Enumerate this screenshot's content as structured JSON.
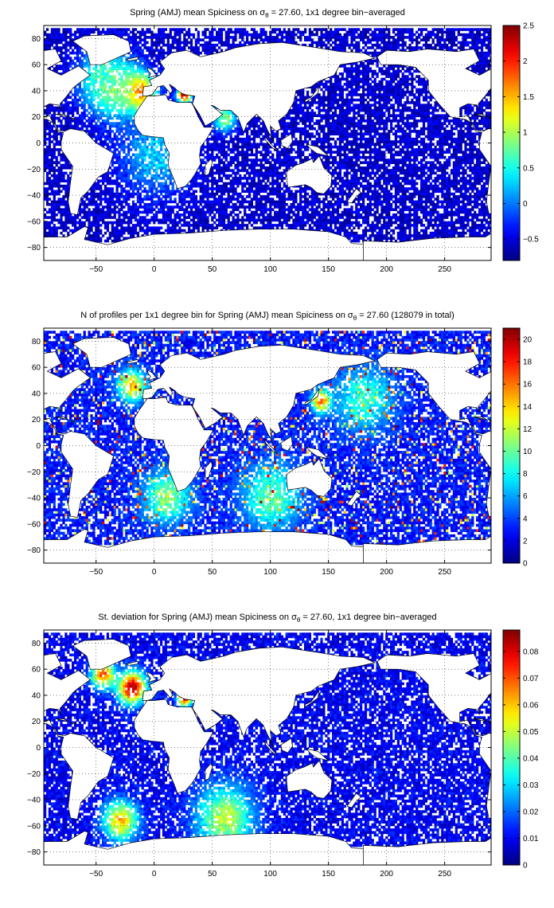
{
  "panels": [
    {
      "id": "mean",
      "title_parts": [
        "Spring (AMJ) mean Spiciness on ",
        "σ",
        "θ",
        " = 27.60, 1x1 degree bin−averaged"
      ],
      "colormap": "jet",
      "clim": [
        -0.8,
        2.5
      ],
      "cbar_ticks": [
        -0.5,
        0,
        0.5,
        1,
        1.5,
        2,
        2.5
      ],
      "cbar_tick_labels": [
        "−0.5",
        "0",
        "0.5",
        "1",
        "1.5",
        "2",
        "2.5"
      ],
      "hotspots": [
        {
          "lon": -15,
          "lat": 38,
          "value": 2.4,
          "spread": 14
        },
        {
          "lon": -35,
          "lat": 40,
          "value": 1.0,
          "spread": 22
        },
        {
          "lon": -45,
          "lat": 50,
          "value": 0.7,
          "spread": 20
        },
        {
          "lon": 25,
          "lat": 36,
          "value": 2.5,
          "spread": 6
        },
        {
          "lon": 60,
          "lat": 18,
          "value": 0.9,
          "spread": 10
        },
        {
          "lon": 0,
          "lat": -10,
          "value": 0.3,
          "spread": 30
        }
      ],
      "background_value": -0.55
    },
    {
      "id": "count",
      "title_parts": [
        "N of profiles per 1x1 degree bin for Spring (AMJ) mean Spiciness on ",
        "σ",
        "θ",
        " = 27.60 (128079 in total)"
      ],
      "colormap": "jet",
      "clim": [
        0,
        21
      ],
      "cbar_ticks": [
        0,
        2,
        4,
        6,
        8,
        10,
        12,
        14,
        16,
        18,
        20
      ],
      "cbar_tick_labels": [
        "0",
        "2",
        "4",
        "6",
        "8",
        "10",
        "12",
        "14",
        "16",
        "18",
        "20"
      ],
      "hotspots": [
        {
          "lon": 143,
          "lat": 33,
          "value": 18,
          "spread": 8
        },
        {
          "lon": -20,
          "lat": 45,
          "value": 14,
          "spread": 12
        },
        {
          "lon": 10,
          "lat": -40,
          "value": 11,
          "spread": 20
        },
        {
          "lon": 100,
          "lat": -40,
          "value": 10,
          "spread": 25
        },
        {
          "lon": 180,
          "lat": 35,
          "value": 9,
          "spread": 25
        }
      ],
      "background_value": 3
    },
    {
      "id": "std",
      "title_parts": [
        "St. deviation for Spring (AMJ) mean Spiciness on ",
        "σ",
        "θ",
        " = 27.60, 1x1 degree bin−averaged"
      ],
      "colormap": "jet",
      "clim": [
        0,
        0.088
      ],
      "cbar_ticks": [
        0,
        0.01,
        0.02,
        0.03,
        0.04,
        0.05,
        0.06,
        0.07,
        0.08
      ],
      "cbar_tick_labels": [
        "0",
        "0.01",
        "0.02",
        "0.03",
        "0.04",
        "0.05",
        "0.06",
        "0.07",
        "0.08"
      ],
      "hotspots": [
        {
          "lon": -20,
          "lat": 45,
          "value": 0.085,
          "spread": 12
        },
        {
          "lon": -45,
          "lat": 55,
          "value": 0.07,
          "spread": 10
        },
        {
          "lon": 25,
          "lat": 37,
          "value": 0.085,
          "spread": 6
        },
        {
          "lon": -30,
          "lat": -57,
          "value": 0.06,
          "spread": 15
        },
        {
          "lon": 60,
          "lat": -55,
          "value": 0.05,
          "spread": 25
        }
      ],
      "background_value": 0.01
    }
  ],
  "axes": {
    "xlim": [
      -95,
      290
    ],
    "ylim": [
      -90,
      90
    ],
    "xticks": [
      -50,
      0,
      50,
      100,
      150,
      200,
      250
    ],
    "xtick_labels": [
      "−50",
      "0",
      "50",
      "100",
      "150",
      "200",
      "250"
    ],
    "yticks": [
      -80,
      -60,
      -40,
      -20,
      0,
      20,
      40,
      60,
      80
    ],
    "ytick_labels": [
      "−80",
      "−60",
      "−40",
      "−20",
      "0",
      "20",
      "40",
      "60",
      "80"
    ],
    "grid": "dotted"
  },
  "chart_data": [
    {
      "type": "heatmap",
      "title": "Spring (AMJ) mean Spiciness on σθ = 27.60, 1x1 degree bin−averaged",
      "xlim": [
        -95,
        290
      ],
      "ylim": [
        -90,
        90
      ],
      "colorbar_range": [
        -0.8,
        2.5
      ]
    },
    {
      "type": "heatmap",
      "title": "N of profiles per 1x1 degree bin for Spring (AMJ) mean Spiciness on σθ = 27.60 (128079 in total)",
      "xlim": [
        -95,
        290
      ],
      "ylim": [
        -90,
        90
      ],
      "colorbar_range": [
        0,
        21
      ]
    },
    {
      "type": "heatmap",
      "title": "St. deviation for Spring (AMJ) mean Spiciness on σθ = 27.60, 1x1 degree bin−averaged",
      "xlim": [
        -95,
        290
      ],
      "ylim": [
        -90,
        90
      ],
      "colorbar_range": [
        0,
        0.088
      ]
    }
  ],
  "land": [
    [
      [
        -168,
        66
      ],
      [
        -160,
        71
      ],
      [
        -140,
        70
      ],
      [
        -125,
        72
      ],
      [
        -100,
        70
      ],
      [
        -85,
        72
      ],
      [
        -80,
        63
      ],
      [
        -92,
        57
      ],
      [
        -80,
        52
      ],
      [
        -65,
        59
      ],
      [
        -55,
        52
      ],
      [
        -66,
        45
      ],
      [
        -70,
        42
      ],
      [
        -76,
        35
      ],
      [
        -81,
        30
      ],
      [
        -80,
        25
      ],
      [
        -82,
        29
      ],
      [
        -90,
        30
      ],
      [
        -97,
        27
      ],
      [
        -97,
        20
      ],
      [
        -90,
        21
      ],
      [
        -87,
        15
      ],
      [
        -83,
        9
      ],
      [
        -78,
        8
      ],
      [
        -80,
        1
      ],
      [
        -80,
        -5
      ],
      [
        -70,
        -18
      ],
      [
        -72,
        -30
      ],
      [
        -74,
        -45
      ],
      [
        -72,
        -54
      ],
      [
        -66,
        -55
      ],
      [
        -63,
        -42
      ],
      [
        -57,
        -37
      ],
      [
        -48,
        -26
      ],
      [
        -40,
        -22
      ],
      [
        -35,
        -8
      ],
      [
        -50,
        0
      ],
      [
        -60,
        9
      ],
      [
        -72,
        11
      ],
      [
        -77,
        9
      ],
      [
        -83,
        10
      ],
      [
        -85,
        14
      ],
      [
        -88,
        16
      ],
      [
        -92,
        18
      ],
      [
        -105,
        20
      ],
      [
        -115,
        30
      ],
      [
        -124,
        40
      ],
      [
        -124,
        48
      ],
      [
        -135,
        58
      ],
      [
        -150,
        60
      ],
      [
        -165,
        60
      ]
    ],
    [
      [
        -10,
        36
      ],
      [
        -9,
        43
      ],
      [
        -2,
        44
      ],
      [
        -4,
        48
      ],
      [
        5,
        52
      ],
      [
        9,
        57
      ],
      [
        5,
        62
      ],
      [
        15,
        69
      ],
      [
        28,
        71
      ],
      [
        40,
        66
      ],
      [
        60,
        70
      ],
      [
        70,
        73
      ],
      [
        90,
        76
      ],
      [
        110,
        77
      ],
      [
        140,
        73
      ],
      [
        160,
        70
      ],
      [
        180,
        69
      ],
      [
        190,
        65
      ],
      [
        175,
        62
      ],
      [
        160,
        60
      ],
      [
        155,
        52
      ],
      [
        141,
        47
      ],
      [
        135,
        43
      ],
      [
        130,
        42
      ],
      [
        122,
        40
      ],
      [
        120,
        31
      ],
      [
        114,
        22
      ],
      [
        107,
        17
      ],
      [
        109,
        11
      ],
      [
        105,
        9
      ],
      [
        100,
        13
      ],
      [
        101,
        3
      ],
      [
        103,
        1
      ],
      [
        98,
        9
      ],
      [
        94,
        17
      ],
      [
        88,
        22
      ],
      [
        80,
        15
      ],
      [
        77,
        8
      ],
      [
        72,
        20
      ],
      [
        66,
        25
      ],
      [
        57,
        25
      ],
      [
        52,
        28
      ],
      [
        49,
        29
      ],
      [
        56,
        24
      ],
      [
        57,
        23
      ],
      [
        59,
        22
      ],
      [
        52,
        17
      ],
      [
        44,
        13
      ],
      [
        43,
        15
      ],
      [
        39,
        22
      ],
      [
        33,
        30
      ],
      [
        35,
        36
      ],
      [
        27,
        37
      ],
      [
        24,
        38
      ],
      [
        20,
        40
      ],
      [
        18,
        42
      ],
      [
        13,
        45
      ],
      [
        16,
        40
      ],
      [
        14,
        38
      ],
      [
        8,
        44
      ],
      [
        3,
        43
      ],
      [
        -2,
        37
      ],
      [
        -6,
        36
      ]
    ],
    [
      [
        -6,
        36
      ],
      [
        0,
        36
      ],
      [
        10,
        37
      ],
      [
        12,
        33
      ],
      [
        20,
        31
      ],
      [
        32,
        31
      ],
      [
        34,
        28
      ],
      [
        38,
        20
      ],
      [
        43,
        12
      ],
      [
        51,
        12
      ],
      [
        45,
        3
      ],
      [
        40,
        -3
      ],
      [
        39,
        -10
      ],
      [
        40,
        -16
      ],
      [
        35,
        -24
      ],
      [
        32,
        -28
      ],
      [
        27,
        -33
      ],
      [
        20,
        -35
      ],
      [
        18,
        -30
      ],
      [
        12,
        -17
      ],
      [
        13,
        -8
      ],
      [
        9,
        -1
      ],
      [
        8,
        4
      ],
      [
        -3,
        5
      ],
      [
        -10,
        6
      ],
      [
        -14,
        10
      ],
      [
        -17,
        15
      ],
      [
        -17,
        21
      ],
      [
        -13,
        27
      ],
      [
        -9,
        32
      ]
    ],
    [
      [
        114,
        -22
      ],
      [
        122,
        -17
      ],
      [
        129,
        -15
      ],
      [
        136,
        -12
      ],
      [
        137,
        -15
      ],
      [
        142,
        -10
      ],
      [
        146,
        -19
      ],
      [
        153,
        -25
      ],
      [
        152,
        -33
      ],
      [
        146,
        -39
      ],
      [
        140,
        -38
      ],
      [
        135,
        -34
      ],
      [
        130,
        -32
      ],
      [
        115,
        -34
      ],
      [
        114,
        -26
      ]
    ],
    [
      [
        -180,
        -75
      ],
      [
        -150,
        -76
      ],
      [
        -120,
        -73
      ],
      [
        -90,
        -72
      ],
      [
        -75,
        -72
      ],
      [
        -60,
        -64
      ],
      [
        -57,
        -65
      ],
      [
        -60,
        -74
      ],
      [
        -40,
        -78
      ],
      [
        -20,
        -73
      ],
      [
        0,
        -70
      ],
      [
        30,
        -69
      ],
      [
        60,
        -67
      ],
      [
        90,
        -66
      ],
      [
        120,
        -66
      ],
      [
        150,
        -68
      ],
      [
        165,
        -72
      ],
      [
        170,
        -77
      ],
      [
        190,
        -78
      ],
      [
        230,
        -75
      ],
      [
        260,
        -73
      ],
      [
        290,
        -72
      ],
      [
        300,
        -90
      ],
      [
        -180,
        -90
      ]
    ],
    [
      [
        -55,
        60
      ],
      [
        -45,
        60
      ],
      [
        -20,
        70
      ],
      [
        -22,
        78
      ],
      [
        -35,
        83
      ],
      [
        -60,
        82
      ],
      [
        -70,
        78
      ],
      [
        -58,
        70
      ]
    ],
    [
      [
        -5,
        50
      ],
      [
        2,
        52
      ],
      [
        -2,
        56
      ],
      [
        -6,
        58
      ],
      [
        -5,
        55
      ],
      [
        -3,
        53
      ]
    ],
    [
      [
        130,
        31
      ],
      [
        135,
        34
      ],
      [
        141,
        38
      ],
      [
        142,
        44
      ],
      [
        140,
        41
      ],
      [
        135,
        35
      ],
      [
        130,
        33
      ]
    ],
    [
      [
        44,
        -25
      ],
      [
        47,
        -24
      ],
      [
        50,
        -15
      ],
      [
        49,
        -12
      ],
      [
        44,
        -17
      ]
    ],
    [
      [
        95,
        5
      ],
      [
        106,
        -6
      ],
      [
        102,
        -4
      ],
      [
        96,
        2
      ]
    ],
    [
      [
        109,
        2
      ],
      [
        118,
        7
      ],
      [
        119,
        1
      ],
      [
        115,
        -4
      ],
      [
        110,
        -2
      ]
    ],
    [
      [
        131,
        -1
      ],
      [
        141,
        -3
      ],
      [
        150,
        -10
      ],
      [
        140,
        -8
      ],
      [
        134,
        -4
      ]
    ],
    [
      [
        166,
        -45
      ],
      [
        174,
        -35
      ],
      [
        178,
        -38
      ],
      [
        174,
        -41
      ],
      [
        170,
        -46
      ]
    ],
    [
      [
        -24,
        64
      ],
      [
        -14,
        66
      ],
      [
        -14,
        64
      ],
      [
        -22,
        63
      ]
    ],
    [
      [
        -85,
        22
      ],
      [
        -74,
        20
      ],
      [
        -78,
        22
      ]
    ],
    [
      [
        -72,
        19
      ],
      [
        -68,
        19
      ],
      [
        -69,
        18
      ]
    ]
  ]
}
